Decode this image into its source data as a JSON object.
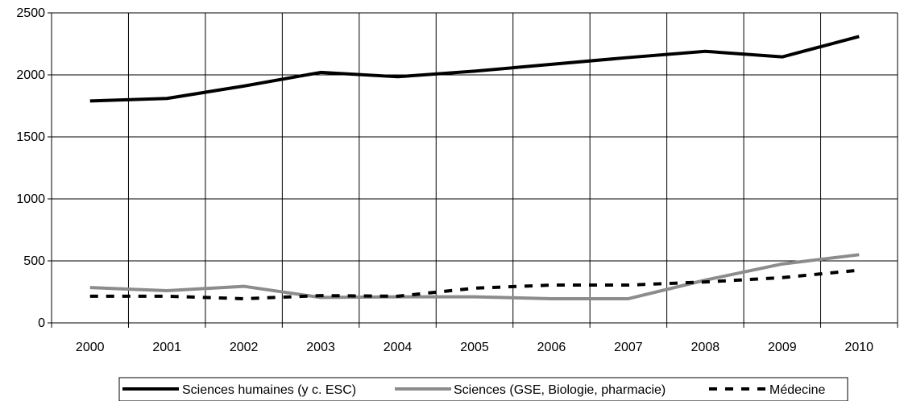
{
  "chart_data": {
    "type": "line",
    "categories": [
      "2000",
      "2001",
      "2002",
      "2003",
      "2004",
      "2005",
      "2006",
      "2007",
      "2008",
      "2009",
      "2010"
    ],
    "ylim": [
      0,
      2500
    ],
    "yticks": [
      0,
      500,
      1000,
      1500,
      2000,
      2500
    ],
    "grid": "vertical and horizontal",
    "legend_position": "bottom",
    "series": [
      {
        "name": "Sciences humaines (y c. ESC)",
        "values": [
          1790,
          1810,
          1910,
          2020,
          1985,
          2030,
          2085,
          2140,
          2190,
          2145,
          2310
        ],
        "color": "#000000",
        "style": "solid"
      },
      {
        "name": "Sciences (GSE, Biologie, pharmacie)",
        "values": [
          285,
          260,
          295,
          205,
          210,
          210,
          195,
          195,
          345,
          475,
          550
        ],
        "color": "#8c8c8c",
        "style": "solid"
      },
      {
        "name": "Médecine",
        "values": [
          215,
          215,
          195,
          220,
          215,
          280,
          305,
          305,
          330,
          365,
          425
        ],
        "color": "#000000",
        "style": "dashed"
      }
    ]
  }
}
